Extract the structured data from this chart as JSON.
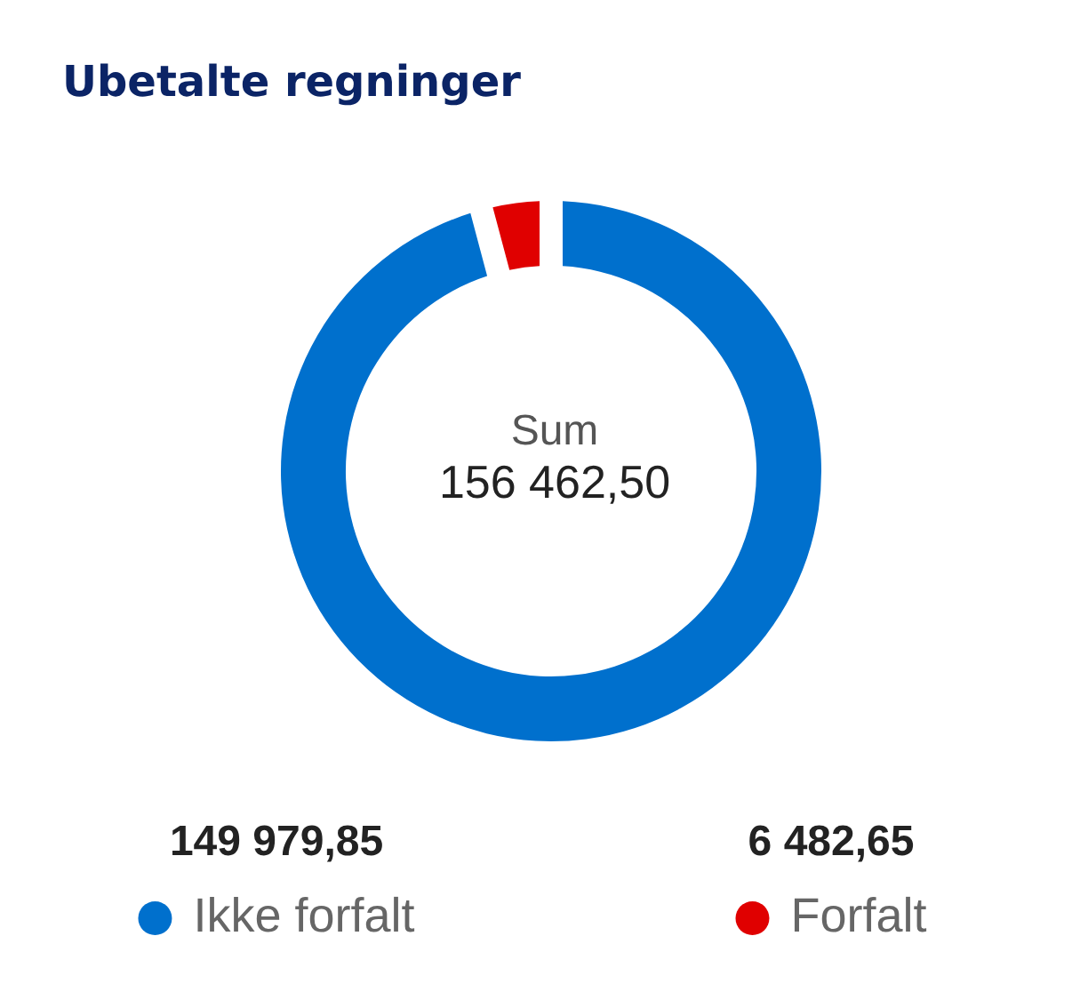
{
  "chart_data": {
    "type": "donut",
    "title": "Ubetalte regninger",
    "categories": [
      "Ikke forfalt",
      "Forfalt"
    ],
    "values": [
      149979.85,
      6482.65
    ],
    "colors": [
      "#0070cd",
      "#e00000"
    ],
    "value_labels": [
      "149 979,85",
      "6 482,65"
    ],
    "annotations": [
      "Sum",
      "156 462,50"
    ],
    "legend": "bottom"
  }
}
